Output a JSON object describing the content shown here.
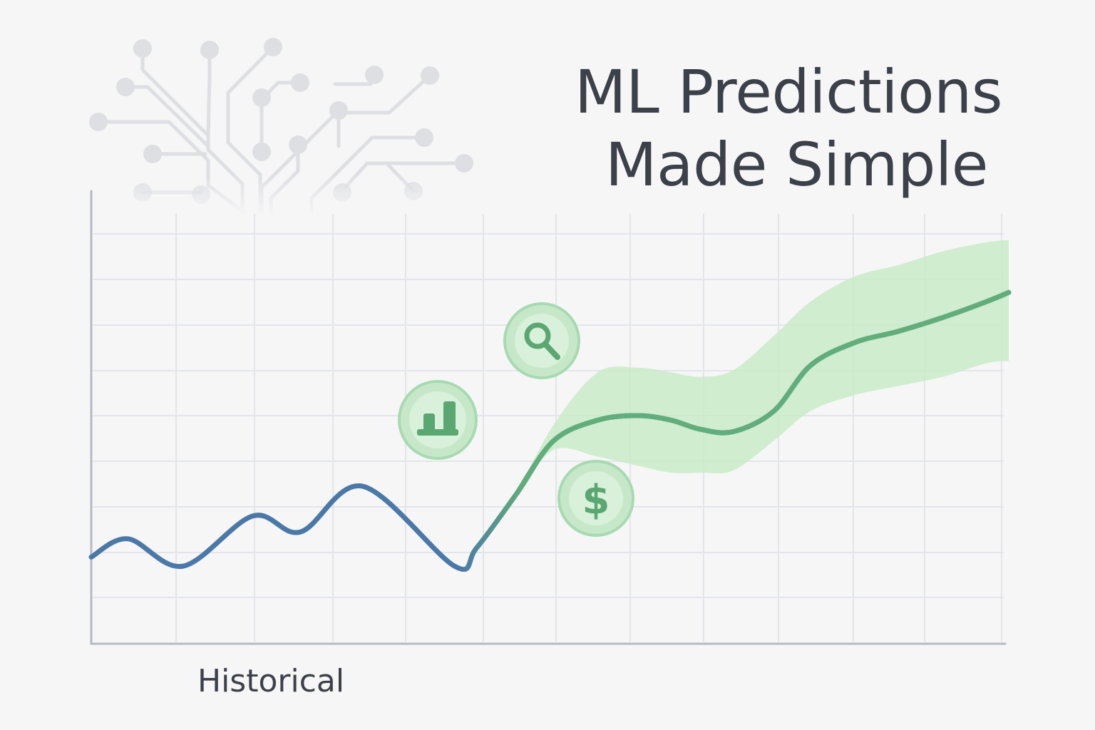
{
  "title": {
    "line1": "ML Predictions",
    "line2": "Made Simple"
  },
  "colors": {
    "background": "#f6f6f7",
    "historical": "#4a78a7",
    "forecast": "#62ad7c",
    "confidence_band": "#c9ebc8",
    "grid": "#e3e5e9",
    "axis": "#b5bac3",
    "network": "#dedfe3",
    "text": "#3c4049"
  },
  "icons": [
    {
      "name": "search-icon"
    },
    {
      "name": "bar-chart-icon"
    },
    {
      "name": "dollar-icon"
    }
  ],
  "chart_data": {
    "type": "line",
    "title": "ML Predictions Made Simple",
    "xlabel": "Historical",
    "ylabel": "",
    "xlim": [
      0,
      12.5
    ],
    "ylim": [
      0,
      10
    ],
    "grid": true,
    "series": [
      {
        "role": "historical",
        "x": [
          0,
          0.5,
          1.25,
          2.2,
          2.85,
          3.7,
          4.95,
          5.25,
          5.8,
          6.3,
          6.9,
          7.45,
          7.9,
          8.3,
          8.75,
          9.3,
          9.8,
          10.4,
          11.0,
          11.6,
          12.2,
          12.5
        ],
        "values": [
          1.9,
          2.3,
          1.7,
          2.8,
          2.45,
          3.45,
          1.7,
          2.1,
          3.3,
          4.45,
          4.9,
          5.0,
          4.9,
          4.7,
          4.65,
          5.1,
          6.1,
          6.6,
          6.85,
          7.15,
          7.5,
          7.7
        ]
      },
      {
        "role": "forecast",
        "x": [
          5.8,
          6.3,
          6.9,
          7.45,
          7.9,
          8.3,
          8.75,
          9.3,
          9.8,
          10.4,
          11.0,
          11.6,
          12.2,
          12.5
        ],
        "values": [
          3.3,
          4.45,
          4.9,
          5.0,
          4.9,
          4.7,
          4.65,
          5.1,
          6.1,
          6.6,
          6.85,
          7.15,
          7.5,
          7.7
        ],
        "upper": [
          3.3,
          4.8,
          5.95,
          6.05,
          5.95,
          5.85,
          6.0,
          6.75,
          7.5,
          8.05,
          8.3,
          8.6,
          8.8,
          8.85
        ],
        "lower": [
          3.3,
          4.25,
          4.1,
          3.9,
          3.75,
          3.75,
          3.8,
          4.45,
          5.1,
          5.45,
          5.65,
          5.85,
          6.15,
          6.2
        ]
      }
    ]
  }
}
